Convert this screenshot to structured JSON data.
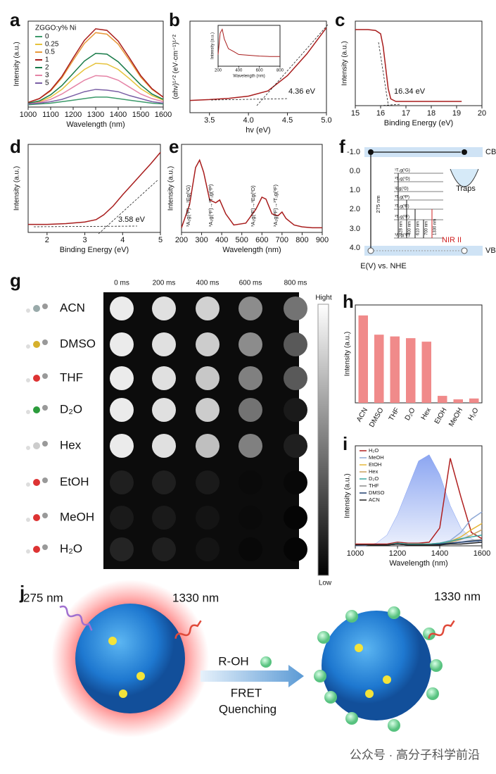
{
  "chart_data": [
    {
      "type": "line",
      "label": "a",
      "xlabel": "Wavelength (nm)",
      "ylabel": "Intensity (a.u.)",
      "legend_title": "ZGGO:y% Ni",
      "x": [
        1000,
        1050,
        1100,
        1150,
        1200,
        1250,
        1300,
        1350,
        1400,
        1450,
        1500,
        1550,
        1600
      ],
      "series": [
        {
          "name": "0",
          "color": "#3c9a6a",
          "values": [
            3,
            4,
            5,
            7,
            9,
            11,
            13,
            13,
            11,
            9,
            7,
            5,
            4
          ]
        },
        {
          "name": "0.25",
          "color": "#e6c33c",
          "values": [
            5,
            7,
            13,
            23,
            37,
            49,
            57,
            56,
            49,
            37,
            24,
            15,
            9
          ]
        },
        {
          "name": "0.5",
          "color": "#e89a3a",
          "values": [
            6,
            11,
            21,
            38,
            61,
            83,
            97,
            95,
            82,
            61,
            39,
            23,
            13
          ]
        },
        {
          "name": "1",
          "color": "#a81c1c",
          "values": [
            6,
            11,
            22,
            40,
            64,
            87,
            102,
            100,
            86,
            64,
            41,
            24,
            13
          ]
        },
        {
          "name": "2",
          "color": "#177a48",
          "values": [
            5,
            8,
            16,
            28,
            44,
            60,
            70,
            69,
            59,
            44,
            29,
            17,
            10
          ]
        },
        {
          "name": "3",
          "color": "#e583a6",
          "values": [
            4,
            6,
            10,
            17,
            26,
            35,
            41,
            40,
            35,
            26,
            17,
            11,
            7
          ]
        },
        {
          "name": "5",
          "color": "#7a5fa5",
          "values": [
            4,
            5,
            7,
            10,
            15,
            20,
            23,
            22,
            20,
            15,
            11,
            7,
            5
          ]
        }
      ],
      "xlim": [
        1000,
        1600
      ],
      "ylim": [
        0,
        112
      ],
      "xticks": [
        1000,
        1100,
        1200,
        1300,
        1400,
        1500,
        1600
      ]
    },
    {
      "type": "line",
      "label": "b",
      "xlabel": "hv (eV)",
      "ylabel": "(αhν)¹ᐟ² (eV·cm⁻¹)¹ᐟ²",
      "annotations": [
        "4.36 eV"
      ],
      "x": [
        3.25,
        3.5,
        3.75,
        4.0,
        4.25,
        4.5,
        4.75,
        5.0
      ],
      "series": [
        {
          "color": "#a81c1c",
          "values": [
            0.28,
            0.3,
            0.33,
            0.38,
            0.5,
            0.85,
            1.35,
            1.95
          ]
        }
      ],
      "xlim": [
        3.25,
        5.0
      ],
      "ylim": [
        0,
        2.1
      ],
      "xticks": [
        3.5,
        {
          "value": 4.0,
          "label": "4.0"
        },
        4.5,
        {
          "value": 5.0,
          "label": "5.0"
        }
      ]
    },
    {
      "type": "line",
      "xlabel": "Wavelength (nm)",
      "ylabel": "Intensity (a.u.)",
      "x": [
        200,
        220,
        240,
        260,
        300,
        350,
        400,
        500,
        600,
        700,
        800
      ],
      "series": [
        {
          "color": "#a81c1c",
          "values": [
            0.3,
            0.85,
            0.95,
            0.7,
            0.45,
            0.38,
            0.3,
            0.28,
            0.26,
            0.25,
            0.25
          ]
        }
      ],
      "xlim": [
        200,
        800
      ],
      "ylim": [
        0,
        1.05
      ],
      "xticks": [
        200,
        400,
        600,
        800
      ]
    },
    {
      "type": "line",
      "label": "c",
      "xlabel": "Binding Energy (eV)",
      "ylabel": "Intensity (a.u.)",
      "annotations": [
        "16.34 eV"
      ],
      "x": [
        15,
        15.5,
        15.8,
        16,
        16.1,
        16.2,
        16.3,
        16.4,
        16.6,
        17,
        18,
        19,
        19.2
      ],
      "series": [
        {
          "color": "#a81c1c",
          "values": [
            0.9,
            0.9,
            0.89,
            0.85,
            0.7,
            0.45,
            0.2,
            0.08,
            0.05,
            0.05,
            0.05,
            0.05,
            0.05
          ]
        }
      ],
      "xlim": [
        15,
        20
      ],
      "ylim": [
        0,
        1
      ],
      "xticks": [
        15,
        16,
        17,
        18,
        19,
        20
      ]
    },
    {
      "type": "line",
      "label": "d",
      "xlabel": "Binding Energy (eV)",
      "ylabel": "Intensity (a.u.)",
      "annotations": [
        "3.58 eV"
      ],
      "x": [
        1.5,
        2,
        2.5,
        3,
        3.3,
        3.5,
        3.75,
        4,
        4.25,
        4.5,
        4.75,
        5
      ],
      "series": [
        {
          "color": "#a81c1c",
          "values": [
            0.1,
            0.1,
            0.11,
            0.13,
            0.16,
            0.22,
            0.33,
            0.47,
            0.6,
            0.73,
            0.86,
            1.0
          ]
        }
      ],
      "xlim": [
        1.5,
        5
      ],
      "ylim": [
        0,
        1.1
      ],
      "xticks": [
        2,
        3,
        4,
        5
      ]
    },
    {
      "type": "line",
      "label": "e",
      "xlabel": "Wavelength (nm)",
      "ylabel": "Intensity (a.u.)",
      "annotations": [
        "³A₂g(³F)→¹Eg(¹G)",
        "³A₂g(³F)→³T₁g(³P)",
        "³A₂g(³F)→¹Eg(¹D)",
        "³A₂g(³F)→³T₁g(³F)"
      ],
      "x": [
        200,
        240,
        270,
        290,
        310,
        340,
        370,
        390,
        420,
        460,
        520,
        570,
        600,
        620,
        650,
        680,
        700,
        720,
        760,
        800,
        850,
        900
      ],
      "series": [
        {
          "color": "#a81c1c",
          "values": [
            0.05,
            0.3,
            0.7,
            0.78,
            0.65,
            0.35,
            0.32,
            0.35,
            0.2,
            0.08,
            0.1,
            0.25,
            0.38,
            0.36,
            0.2,
            0.18,
            0.22,
            0.15,
            0.08,
            0.06,
            0.05,
            0.05
          ]
        }
      ],
      "xlim": [
        200,
        900
      ],
      "ylim": [
        0,
        0.95
      ],
      "xticks": [
        200,
        300,
        400,
        500,
        600,
        700,
        800,
        900
      ]
    },
    {
      "type": "bar",
      "label": "h",
      "ylabel": "Intensity (a.u.)",
      "color": "#f08a8a",
      "categories": [
        "ACN",
        "DMSO",
        "THF",
        "D₂O",
        "Hex",
        "EtOH",
        "MeOH",
        "H₂O"
      ],
      "values": [
        100,
        78,
        76,
        74,
        70,
        8,
        4,
        5
      ],
      "ylim": [
        0,
        112
      ]
    },
    {
      "type": "line",
      "label": "i",
      "xlabel": "Wavelength (nm)",
      "ylabel": "Intensity (a.u.)",
      "x": [
        1000,
        1050,
        1100,
        1150,
        1200,
        1250,
        1300,
        1350,
        1400,
        1450,
        1500,
        1550,
        1600
      ],
      "emission": {
        "color": "#7f9cf0",
        "values": [
          0,
          0,
          3,
          12,
          35,
          65,
          95,
          102,
          80,
          45,
          20,
          8,
          3
        ]
      },
      "series": [
        {
          "name": "H₂O",
          "color": "#b02020",
          "values": [
            2,
            2,
            2,
            2,
            4,
            3,
            3,
            4,
            20,
            98,
            55,
            15,
            8
          ]
        },
        {
          "name": "MeOH",
          "color": "#8fa9d6",
          "values": [
            1,
            1,
            1,
            1,
            3,
            2,
            2,
            2,
            3,
            6,
            15,
            30,
            38
          ]
        },
        {
          "name": "EtOH",
          "color": "#e6b83c",
          "values": [
            1,
            1,
            1,
            1,
            3,
            2,
            2,
            2,
            3,
            5,
            10,
            18,
            25
          ]
        },
        {
          "name": "Hex",
          "color": "#c9a15f",
          "values": [
            1,
            1,
            1,
            1,
            2,
            2,
            2,
            2,
            3,
            4,
            7,
            12,
            18
          ]
        },
        {
          "name": "D₂O",
          "color": "#3aa7a0",
          "values": [
            1,
            1,
            1,
            1,
            3,
            2,
            2,
            2,
            3,
            5,
            8,
            10,
            12
          ]
        },
        {
          "name": "THF",
          "color": "#8a8a8a",
          "values": [
            1,
            1,
            1,
            1,
            2,
            1,
            1,
            1,
            2,
            3,
            4,
            6,
            7
          ]
        },
        {
          "name": "DMSO",
          "color": "#1f3f6e",
          "values": [
            1,
            1,
            1,
            1,
            2,
            1,
            1,
            1,
            2,
            3,
            4,
            5,
            6
          ]
        },
        {
          "name": "ACN",
          "color": "#222222",
          "values": [
            1,
            1,
            1,
            1,
            2,
            1,
            1,
            1,
            1,
            2,
            2,
            3,
            4
          ]
        }
      ],
      "xlim": [
        1000,
        1600
      ],
      "ylim": [
        0,
        112
      ],
      "xticks": [
        1000,
        1200,
        1400,
        1600
      ]
    }
  ],
  "energy_diagram": {
    "label": "f",
    "energy_ticks": [
      "-1.0",
      "0.0",
      "1.0",
      "2.0",
      "3.0",
      "4.0"
    ],
    "cb": "CB",
    "vb": "VB",
    "traps": "Traps",
    "excitation": "275 nm",
    "emission": "NIR II",
    "axis_title": "E(V) vs. NHE",
    "levels": [
      "¹T₁g(¹G)",
      "³T₂g(¹D)",
      "¹Eg(¹D)",
      "³T₁g(³P)",
      "³T₁g(³F)",
      "³T₂g(³F)",
      "³A₂g(³F)"
    ],
    "transitions": [
      "328 nm",
      "400 nm",
      "610 nm",
      "700 nm",
      "1330 nm"
    ]
  },
  "image_grid": {
    "label": "g",
    "times": [
      "0 ms",
      "200 ms",
      "400 ms",
      "600 ms",
      "800 ms"
    ],
    "solvents": [
      "ACN",
      "DMSO",
      "THF",
      "D₂O",
      "Hex",
      "EtOH",
      "MeOH",
      "H₂O"
    ],
    "brightness": [
      [
        92,
        88,
        82,
        55,
        45
      ],
      [
        92,
        88,
        80,
        55,
        35
      ],
      [
        92,
        88,
        78,
        50,
        35
      ],
      [
        92,
        88,
        80,
        45,
        10
      ],
      [
        92,
        88,
        75,
        50,
        12
      ],
      [
        12,
        12,
        10,
        4,
        3
      ],
      [
        10,
        10,
        8,
        4,
        2
      ],
      [
        14,
        12,
        8,
        3,
        2
      ]
    ],
    "colorbar_high": "Hight",
    "colorbar_low": "Low"
  },
  "schematic": {
    "label": "j",
    "excitation": "275 nm",
    "emission_left": "1330 nm",
    "reagent": "R-OH",
    "process": [
      "FRET",
      "Quenching"
    ],
    "emission_right": "1330 nm"
  },
  "watermark": "公众号 · 高分子科学前沿"
}
